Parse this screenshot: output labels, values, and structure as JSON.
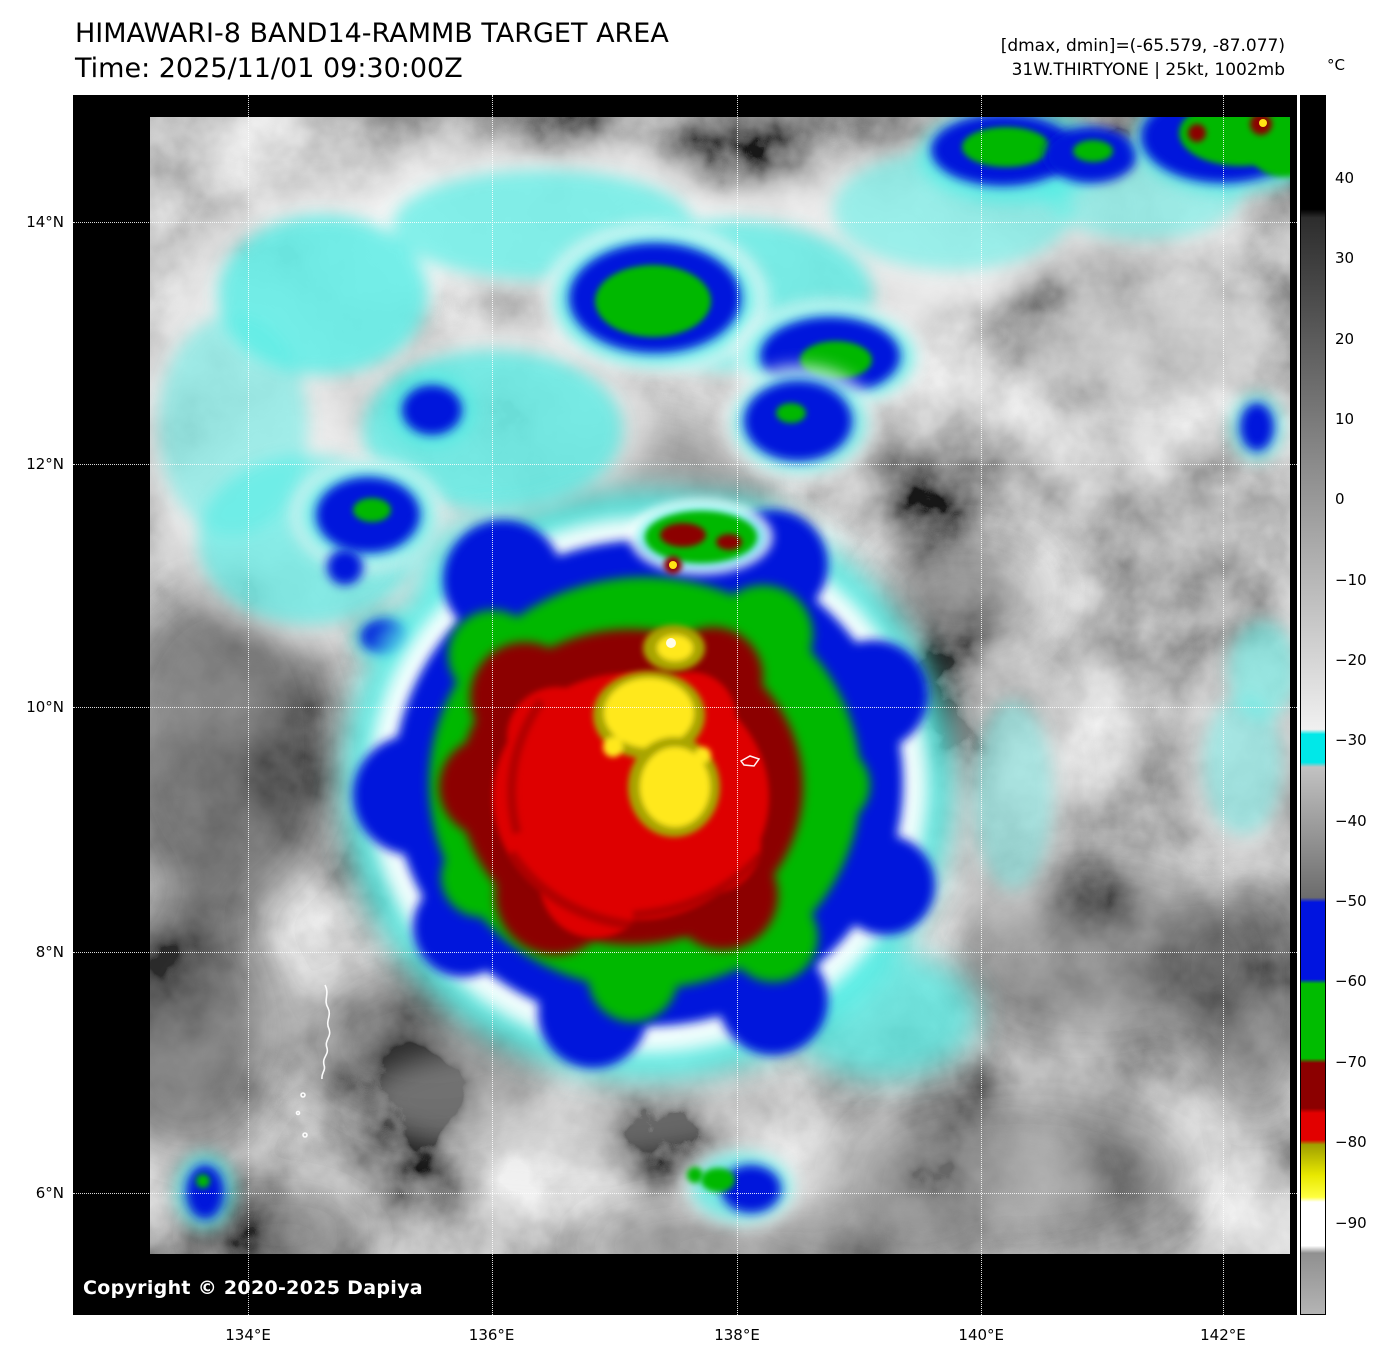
{
  "header": {
    "title": "HIMAWARI-8 BAND14-RAMMB TARGET AREA",
    "time_line": "Time: 2025/11/01 09:30:00Z",
    "dmax_dmin_line": "[dmax, dmin]=(-65.579, -87.077)",
    "storm_info_line": "31W.THIRTYONE | 25kt, 1002mb"
  },
  "colorbar": {
    "unit_label": "°C",
    "vmax": 50.3,
    "vmin": -101.5,
    "ticks": [
      [
        40,
        "40"
      ],
      [
        30,
        "30"
      ],
      [
        20,
        "20"
      ],
      [
        10,
        "10"
      ],
      [
        0,
        "0"
      ],
      [
        -10,
        "−10"
      ],
      [
        -20,
        "−20"
      ],
      [
        -30,
        "−30"
      ],
      [
        -40,
        "−40"
      ],
      [
        -50,
        "−50"
      ],
      [
        -60,
        "−60"
      ],
      [
        -70,
        "−70"
      ],
      [
        -80,
        "−80"
      ],
      [
        -90,
        "−90"
      ]
    ],
    "gradient_stops": [
      [
        0.0,
        "#000000"
      ],
      [
        0.093,
        "#000000"
      ],
      [
        0.1,
        "#2d2d2d"
      ],
      [
        0.52,
        "#f0f0f0"
      ],
      [
        0.524,
        "#00e8e8"
      ],
      [
        0.547,
        "#00e8e8"
      ],
      [
        0.551,
        "#c2c2c2"
      ],
      [
        0.658,
        "#6c6c6c"
      ],
      [
        0.662,
        "#0014e0"
      ],
      [
        0.725,
        "#0014e0"
      ],
      [
        0.729,
        "#00bc00"
      ],
      [
        0.79,
        "#00bc00"
      ],
      [
        0.794,
        "#8c0000"
      ],
      [
        0.831,
        "#8c0000"
      ],
      [
        0.835,
        "#e20000"
      ],
      [
        0.857,
        "#e20000"
      ],
      [
        0.861,
        "#a0a000"
      ],
      [
        0.886,
        "#e8e800"
      ],
      [
        0.904,
        "#ffff40"
      ],
      [
        0.908,
        "#ffffff"
      ],
      [
        0.944,
        "#ffffff"
      ],
      [
        0.95,
        "#909090"
      ],
      [
        1.0,
        "#b4b4b4"
      ]
    ]
  },
  "axes": {
    "lat": [
      {
        "label": "14°N",
        "f": 0.104
      },
      {
        "label": "12°N",
        "f": 0.3025
      },
      {
        "label": "10°N",
        "f": 0.5016
      },
      {
        "label": "8°N",
        "f": 0.7025
      },
      {
        "label": "6°N",
        "f": 0.9
      }
    ],
    "lon": [
      {
        "label": "134°E",
        "f": 0.143
      },
      {
        "label": "136°E",
        "f": 0.342
      },
      {
        "label": "138°E",
        "f": 0.5425
      },
      {
        "label": "140°E",
        "f": 0.742
      },
      {
        "label": "142°E",
        "f": 0.9395
      }
    ]
  },
  "map": {
    "copyright": "Copyright © 2020-2025 Dapiya"
  }
}
